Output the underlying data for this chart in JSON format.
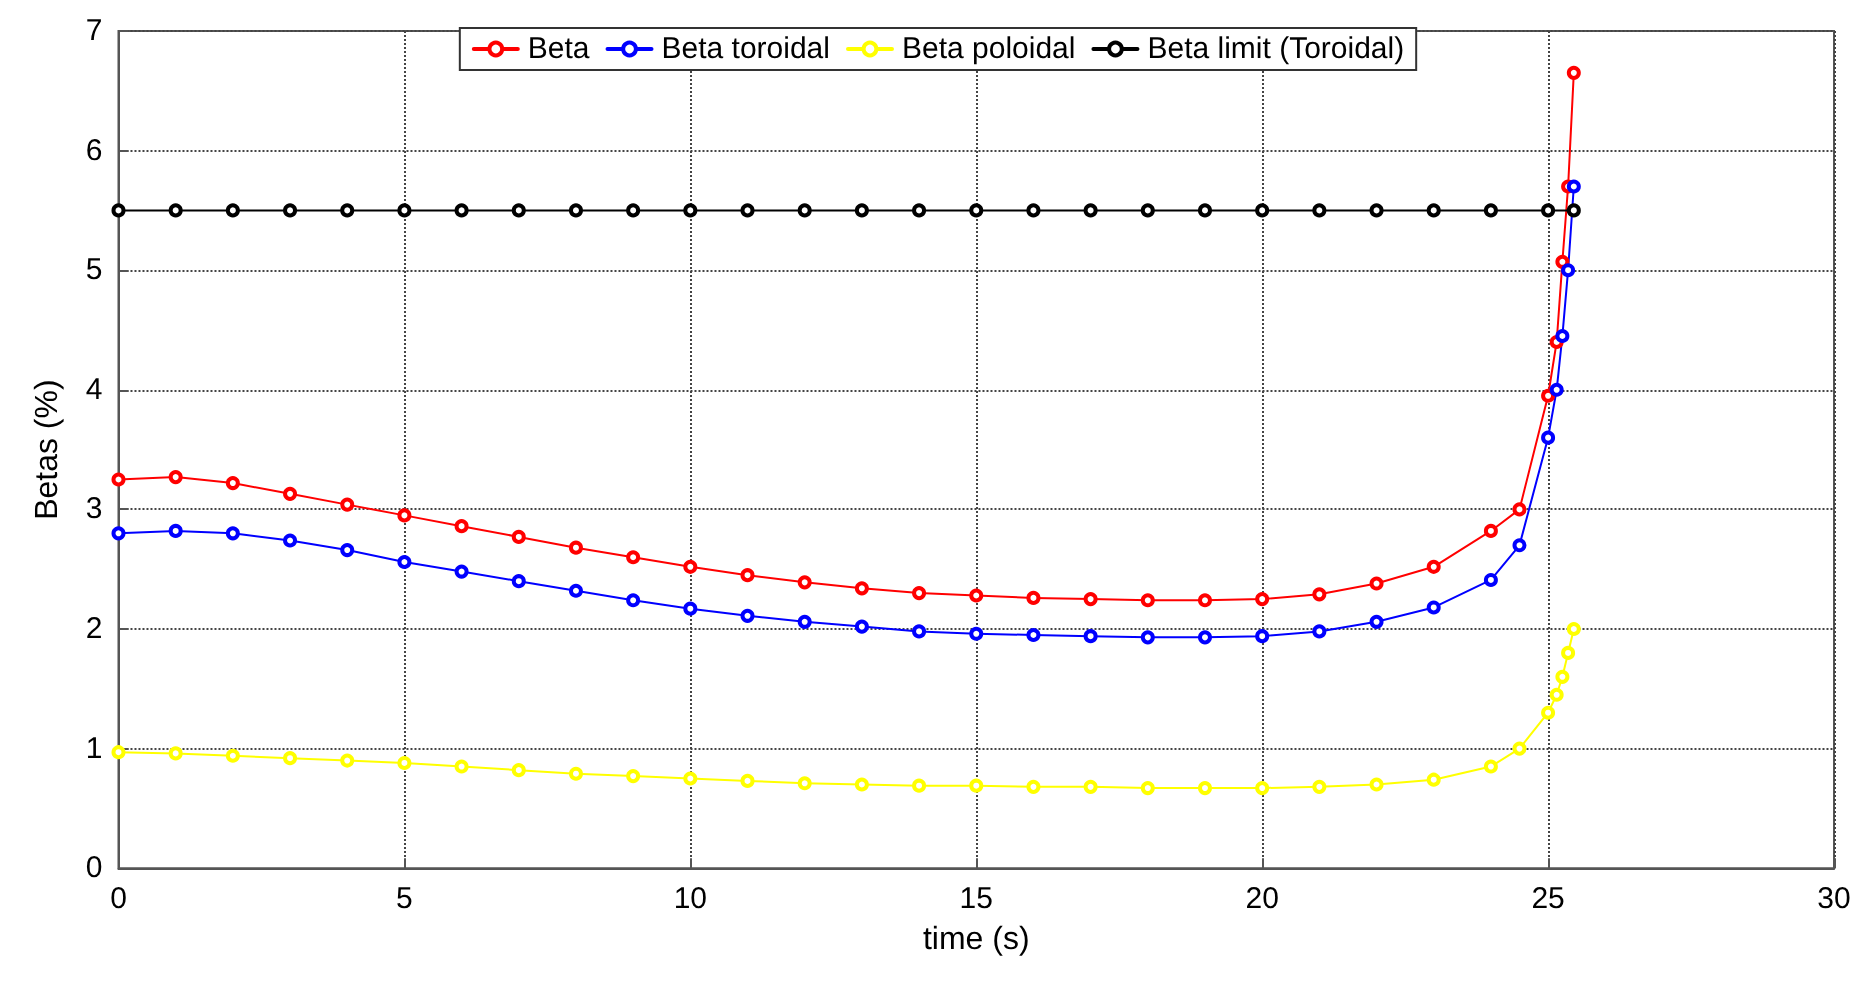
{
  "chart_data": {
    "type": "line",
    "xlabel": "time (s)",
    "ylabel": "Betas (%)",
    "x": [
      0,
      1,
      2,
      3,
      4,
      5,
      6,
      7,
      8,
      9,
      10,
      11,
      12,
      13,
      14,
      15,
      16,
      17,
      18,
      19,
      20,
      21,
      22,
      23,
      24,
      24.5,
      25,
      25.15,
      25.25,
      25.35,
      25.45
    ],
    "series": [
      {
        "name": "Beta",
        "color": "#ff0000",
        "values": [
          3.25,
          3.27,
          3.22,
          3.13,
          3.04,
          2.95,
          2.86,
          2.77,
          2.68,
          2.6,
          2.52,
          2.45,
          2.39,
          2.34,
          2.3,
          2.28,
          2.26,
          2.25,
          2.24,
          2.24,
          2.25,
          2.29,
          2.38,
          2.52,
          2.82,
          3.0,
          3.95,
          4.4,
          5.07,
          5.7,
          6.65
        ]
      },
      {
        "name": "Beta toroidal",
        "color": "#0000ff",
        "values": [
          2.8,
          2.82,
          2.8,
          2.74,
          2.66,
          2.56,
          2.48,
          2.4,
          2.32,
          2.24,
          2.17,
          2.11,
          2.06,
          2.02,
          1.98,
          1.96,
          1.95,
          1.94,
          1.93,
          1.93,
          1.94,
          1.98,
          2.06,
          2.18,
          2.41,
          2.7,
          3.6,
          4.0,
          4.45,
          5.0,
          5.7
        ]
      },
      {
        "name": "Beta poloidal",
        "color": "#ffff00",
        "values": [
          0.97,
          0.96,
          0.94,
          0.92,
          0.9,
          0.88,
          0.85,
          0.82,
          0.79,
          0.77,
          0.75,
          0.73,
          0.71,
          0.7,
          0.69,
          0.69,
          0.68,
          0.68,
          0.67,
          0.67,
          0.67,
          0.68,
          0.7,
          0.74,
          0.85,
          1.0,
          1.3,
          1.45,
          1.6,
          1.8,
          2.0
        ]
      },
      {
        "name": "Beta limit (Toroidal)",
        "color": "#000000",
        "x": [
          0,
          1,
          2,
          3,
          4,
          5,
          6,
          7,
          8,
          9,
          10,
          11,
          12,
          13,
          14,
          15,
          16,
          17,
          18,
          19,
          20,
          21,
          22,
          23,
          24,
          25,
          25.45
        ],
        "values": [
          5.5,
          5.5,
          5.5,
          5.5,
          5.5,
          5.5,
          5.5,
          5.5,
          5.5,
          5.5,
          5.5,
          5.5,
          5.5,
          5.5,
          5.5,
          5.5,
          5.5,
          5.5,
          5.5,
          5.5,
          5.5,
          5.5,
          5.5,
          5.5,
          5.5,
          5.5,
          5.5
        ]
      }
    ],
    "xlim": [
      0,
      30
    ],
    "xticks": [
      0,
      5,
      10,
      15,
      20,
      25,
      30
    ],
    "ylim": [
      0,
      7
    ],
    "yticks": [
      0,
      1,
      2,
      3,
      4,
      5,
      6,
      7
    ],
    "grid": true,
    "legend": "top",
    "marker": "circle",
    "line_style": "solid"
  }
}
